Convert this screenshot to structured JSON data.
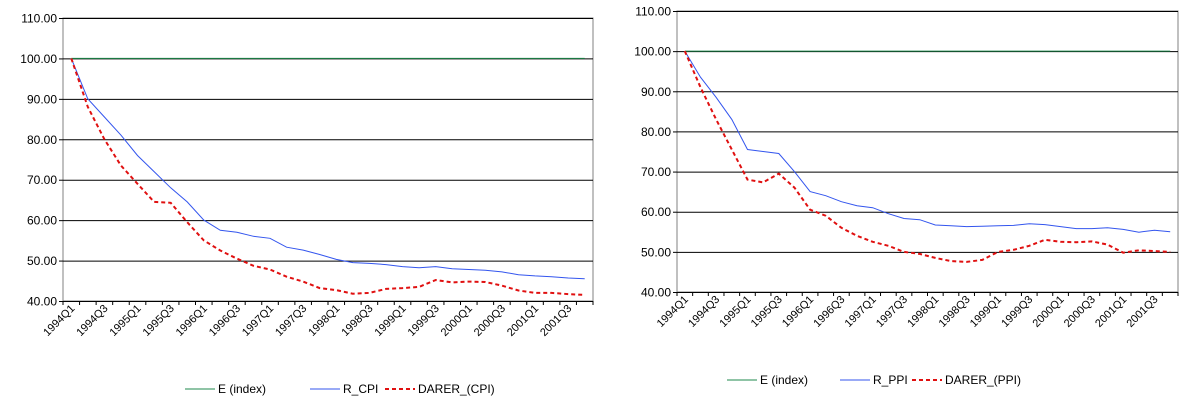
{
  "chart_data": [
    {
      "type": "line",
      "title": "",
      "xlabel": "",
      "ylabel": "",
      "ylim": [
        40,
        110
      ],
      "yticks": [
        "40.00",
        "50.00",
        "60.00",
        "70.00",
        "80.00",
        "90.00",
        "100.00",
        "110.00"
      ],
      "grid": "horizontal",
      "legend_position": "bottom",
      "x": [
        "1994Q1",
        "1994Q2",
        "1994Q3",
        "1994Q4",
        "1995Q1",
        "1995Q2",
        "1995Q3",
        "1995Q4",
        "1996Q1",
        "1996Q2",
        "1996Q3",
        "1996Q4",
        "1997Q1",
        "1997Q2",
        "1997Q3",
        "1997Q4",
        "1998Q1",
        "1998Q2",
        "1998Q3",
        "1998Q4",
        "1999Q1",
        "1999Q2",
        "1999Q3",
        "1999Q4",
        "2000Q1",
        "2000Q2",
        "2000Q3",
        "2000Q4",
        "2001Q1",
        "2001Q2",
        "2001Q3",
        "2001Q4"
      ],
      "x_tick_labels": [
        "1994Q1",
        "1994Q3",
        "1995Q1",
        "1995Q3",
        "1996Q1",
        "1996Q3",
        "1997Q1",
        "1997Q3",
        "1998Q1",
        "1998Q3",
        "1999Q1",
        "1999Q3",
        "2000Q1",
        "2000Q3",
        "2001Q1",
        "2001Q3"
      ],
      "series": [
        {
          "name": "E (index)",
          "color": "#1f8a4c",
          "dash": "solid",
          "values": [
            100,
            100,
            100,
            100,
            100,
            100,
            100,
            100,
            100,
            100,
            100,
            100,
            100,
            100,
            100,
            100,
            100,
            100,
            100,
            100,
            100,
            100,
            100,
            100,
            100,
            100,
            100,
            100,
            100,
            100,
            100,
            100
          ]
        },
        {
          "name": "R_CPI",
          "color": "#3355ee",
          "dash": "solid",
          "values": [
            100,
            90,
            85.5,
            81,
            76,
            72,
            68,
            64.5,
            60,
            57.5,
            57,
            56,
            55.5,
            53.3,
            52.6,
            51.5,
            50.3,
            49.5,
            49.3,
            49,
            48.5,
            48.2,
            48.5,
            48,
            47.8,
            47.6,
            47.2,
            46.5,
            46.2,
            46,
            45.7,
            45.5
          ]
        },
        {
          "name": "DARER_(CPI)",
          "color": "#e01010",
          "dash": "dashed",
          "values": [
            100,
            88,
            80,
            73.5,
            69,
            64.5,
            64.3,
            59.5,
            55,
            52.5,
            50.5,
            48.7,
            47.8,
            46,
            44.8,
            43.2,
            42.7,
            41.8,
            42,
            43,
            43.2,
            43.5,
            45.2,
            44.6,
            44.8,
            44.7,
            43.8,
            42.6,
            42,
            42,
            41.7,
            41.5
          ]
        }
      ]
    },
    {
      "type": "line",
      "title": "",
      "xlabel": "",
      "ylabel": "",
      "ylim": [
        40,
        110
      ],
      "yticks": [
        "40.00",
        "50.00",
        "60.00",
        "70.00",
        "80.00",
        "90.00",
        "100.00",
        "110.00"
      ],
      "grid": "horizontal",
      "legend_position": "bottom",
      "x": [
        "1994Q1",
        "1994Q2",
        "1994Q3",
        "1994Q4",
        "1995Q1",
        "1995Q2",
        "1995Q3",
        "1995Q4",
        "1996Q1",
        "1996Q2",
        "1996Q3",
        "1996Q4",
        "1997Q1",
        "1997Q2",
        "1997Q3",
        "1997Q4",
        "1998Q1",
        "1998Q2",
        "1998Q3",
        "1998Q4",
        "1999Q1",
        "1999Q2",
        "1999Q3",
        "1999Q4",
        "2000Q1",
        "2000Q2",
        "2000Q3",
        "2000Q4",
        "2001Q1",
        "2001Q2",
        "2001Q3",
        "2001Q4"
      ],
      "x_tick_labels": [
        "1994Q1",
        "1994Q3",
        "1995Q1",
        "1995Q3",
        "1996Q1",
        "1996Q3",
        "1997Q1",
        "1997Q3",
        "1998Q1",
        "1998Q3",
        "1999Q1",
        "1999Q3",
        "2000Q1",
        "2000Q3",
        "2001Q1",
        "2001Q3"
      ],
      "series": [
        {
          "name": "E (index)",
          "color": "#1f8a4c",
          "dash": "solid",
          "values": [
            100,
            100,
            100,
            100,
            100,
            100,
            100,
            100,
            100,
            100,
            100,
            100,
            100,
            100,
            100,
            100,
            100,
            100,
            100,
            100,
            100,
            100,
            100,
            100,
            100,
            100,
            100,
            100,
            100,
            100,
            100,
            100
          ]
        },
        {
          "name": "R_PPI",
          "color": "#3355ee",
          "dash": "solid",
          "values": [
            100,
            93.5,
            88.5,
            83,
            75.5,
            75,
            74.5,
            70,
            65,
            64,
            62.5,
            61.5,
            61,
            59.5,
            58.3,
            58,
            56.7,
            56.5,
            56.3,
            56.4,
            56.5,
            56.6,
            57,
            56.8,
            56.3,
            55.8,
            55.8,
            56,
            55.6,
            54.9,
            55.4,
            55
          ]
        },
        {
          "name": "DARER_(PPI)",
          "color": "#e01010",
          "dash": "dashed",
          "values": [
            100,
            91,
            83,
            75.5,
            68,
            67.3,
            69.5,
            66,
            60.5,
            59,
            56,
            54,
            52.5,
            51.5,
            50,
            49.5,
            48.5,
            47.7,
            47.5,
            48,
            50,
            50.5,
            51.5,
            53,
            52.5,
            52.4,
            52.6,
            51.8,
            49.8,
            50.4,
            50.2,
            50
          ]
        }
      ]
    }
  ]
}
